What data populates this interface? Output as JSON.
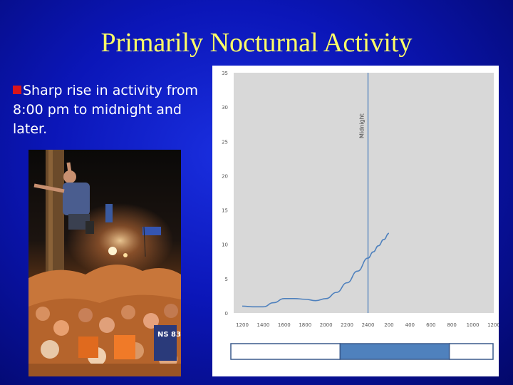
{
  "slide": {
    "title": "Primarily Nocturnal Activity",
    "bullet_text": "Sharp rise in activity from 8:00 pm to midnight and later.",
    "bullet_color": "#d9151c",
    "title_color": "#ffff66"
  },
  "photo": {
    "icon": "crowd-celebration-photo",
    "jersey_text": "NS 83"
  },
  "chart_data": {
    "type": "line",
    "x_categories": [
      "1200",
      "1400",
      "1600",
      "1800",
      "2000",
      "2200",
      "2400",
      "200",
      "400",
      "600",
      "800",
      "1000",
      "1200"
    ],
    "ylim": [
      0,
      35
    ],
    "y_ticks": [
      "0",
      "5",
      "10",
      "15",
      "20",
      "25",
      "30",
      "35"
    ],
    "series": [
      {
        "color": "#4f81bd",
        "x": [
          0,
          0.5,
          1,
          1.5,
          2,
          2.5,
          3,
          3.5,
          4,
          4.5,
          5,
          5.5,
          6,
          6.25,
          6.5,
          6.75,
          7
        ],
        "y": [
          1,
          0.9,
          0.9,
          1.5,
          2.1,
          2.1,
          2.0,
          1.8,
          2.1,
          3.0,
          4.4,
          6.1,
          8.0,
          8.9,
          9.8,
          10.7,
          11.6
        ]
      }
    ],
    "annotations": [
      {
        "label": "Midnight",
        "x_category": "2400"
      }
    ],
    "time_band": {
      "segments": [
        {
          "color": "#ffffff",
          "span": [
            0,
            5
          ]
        },
        {
          "color": "#4f81bd",
          "span": [
            5,
            10
          ]
        },
        {
          "color": "#ffffff",
          "span": [
            10,
            12
          ]
        }
      ],
      "border_color": "#3a5a8c"
    },
    "plot_background": "#d8d8d8",
    "grid": false,
    "legend": "none"
  }
}
